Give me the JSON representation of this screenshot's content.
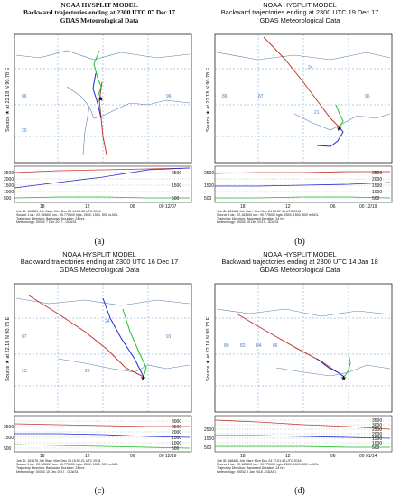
{
  "figure": {
    "panels": [
      {
        "id": "a",
        "serif": true,
        "title": "NOAA HYSPLIT MODEL",
        "subtitle": "Backward trajectories ending at 2300 UTC 07 Dec 17",
        "data_line": "GDAS Meteorological Data",
        "source_label": "Source ★ at 22.18 N 90.78 E",
        "time_ticks": [
          "18",
          "12",
          "06",
          "00 12/07"
        ],
        "height_ticks": [
          "2500",
          "2000",
          "1500",
          "1000",
          "500"
        ],
        "axis_label": "Meters AGL",
        "info": [
          "Job ID: 180381        Job Start: Mon Dec 24 14:20:58 UTC 2018",
          "Source 1 lat.: 22.183600  lon.: 90.775000  hgts: 2500, 1500, 500 m AGL",
          "Trajectory Direction: Backward     Duration: 24 hrs",
          "Vertical Motion Calculation Method:     Model Vertical Velocity",
          "Meteorology: 0000Z 7 Dec 2017 - GDAS1"
        ],
        "caption": "(a)"
      },
      {
        "id": "b",
        "serif": false,
        "title": "NOAA HYSPLIT MODEL",
        "subtitle": "Backward trajectories ending at 2300 UTC 19 Dec 17",
        "data_line": "GDAS Meteorological Data",
        "source_label": "Source ★ at 22.18 N 90.78 E",
        "time_ticks": [
          "18",
          "12",
          "06",
          "00 12/19"
        ],
        "height_ticks": [
          "2500",
          "2000",
          "1500",
          "1000",
          "500"
        ],
        "axis_label": "Meters AGL",
        "info": [
          "Job ID: 181184        Job Start: Mon Dec 24 16:57:45 UTC 2018",
          "Source 1 lat.: 22.183600  lon.: 90.775000  hgts: 2500, 1500, 500 m AGL",
          "Trajectory Direction: Backward     Duration: 24 hrs",
          "Vertical Motion Calculation Method:     Model Vertical Velocity",
          "Meteorology: 0000Z 15 Dec 2017 - GDAS1"
        ],
        "caption": "(b)"
      },
      {
        "id": "c",
        "serif": false,
        "title": "NOAA HYSPLIT MODEL",
        "subtitle": "Backward trajectories ending at 2300 UTC 16 Dec 17",
        "data_line": "GDAS Meteorological Data",
        "source_label": "Source ★ at 22.18 N 90.78 E",
        "time_ticks": [
          "18",
          "12",
          "06",
          "00 12/16"
        ],
        "height_ticks": [
          "3000",
          "2500",
          "2000",
          "1500",
          "1000",
          "500"
        ],
        "axis_label": "Meters AGL",
        "info": [
          "Job ID: 181178        Job Start: Mon Dec 24 15:52:21 UTC 2018",
          "Source 1 lat.: 22.183600  lon.: 90.775000  hgts: 2500, 1500, 500 m AGL",
          "Trajectory Direction: Backward     Duration: 24 hrs",
          "Vertical Motion Calculation Method:     Model Vertical Velocity",
          "Meteorology: 0000Z 15 Dec 2017 - GDAS1"
        ],
        "caption": "(c)"
      },
      {
        "id": "d",
        "serif": false,
        "title": "NOAA HYSPLIT MODEL",
        "subtitle": "Backward trajectories ending at 2300 UTC 14 Jan 18",
        "data_line": "GDAS Meteorological Data",
        "source_label": "Source ★ at 22.18 N 90.78 E",
        "time_ticks": [
          "18",
          "12",
          "06",
          "00 01/14"
        ],
        "height_ticks": [
          "3500",
          "3000",
          "2500",
          "2000",
          "1500",
          "1000",
          "500"
        ],
        "axis_label": "Meters AGL",
        "info": [
          "Job ID: 188461        Job Start: Mon Dec 24 17:01:35 UTC 2018",
          "Source 1 lat.: 22.183600  lon.: 90.775000  hgts: 2500, 1500, 500 m AGL",
          "Trajectory Direction: Backward     Duration: 24 hrs",
          "Vertical Motion Calculation Method:     Model Vertical Velocity",
          "Meteorology: 0000Z 8 Jan 2018 - GDAS1"
        ],
        "caption": "(d)"
      }
    ],
    "colors": {
      "red": "#c0392b",
      "blue": "#1f2bd1",
      "green": "#1cbf2a",
      "grid": "#3f7fbf",
      "land": "#5a7fa8"
    }
  }
}
